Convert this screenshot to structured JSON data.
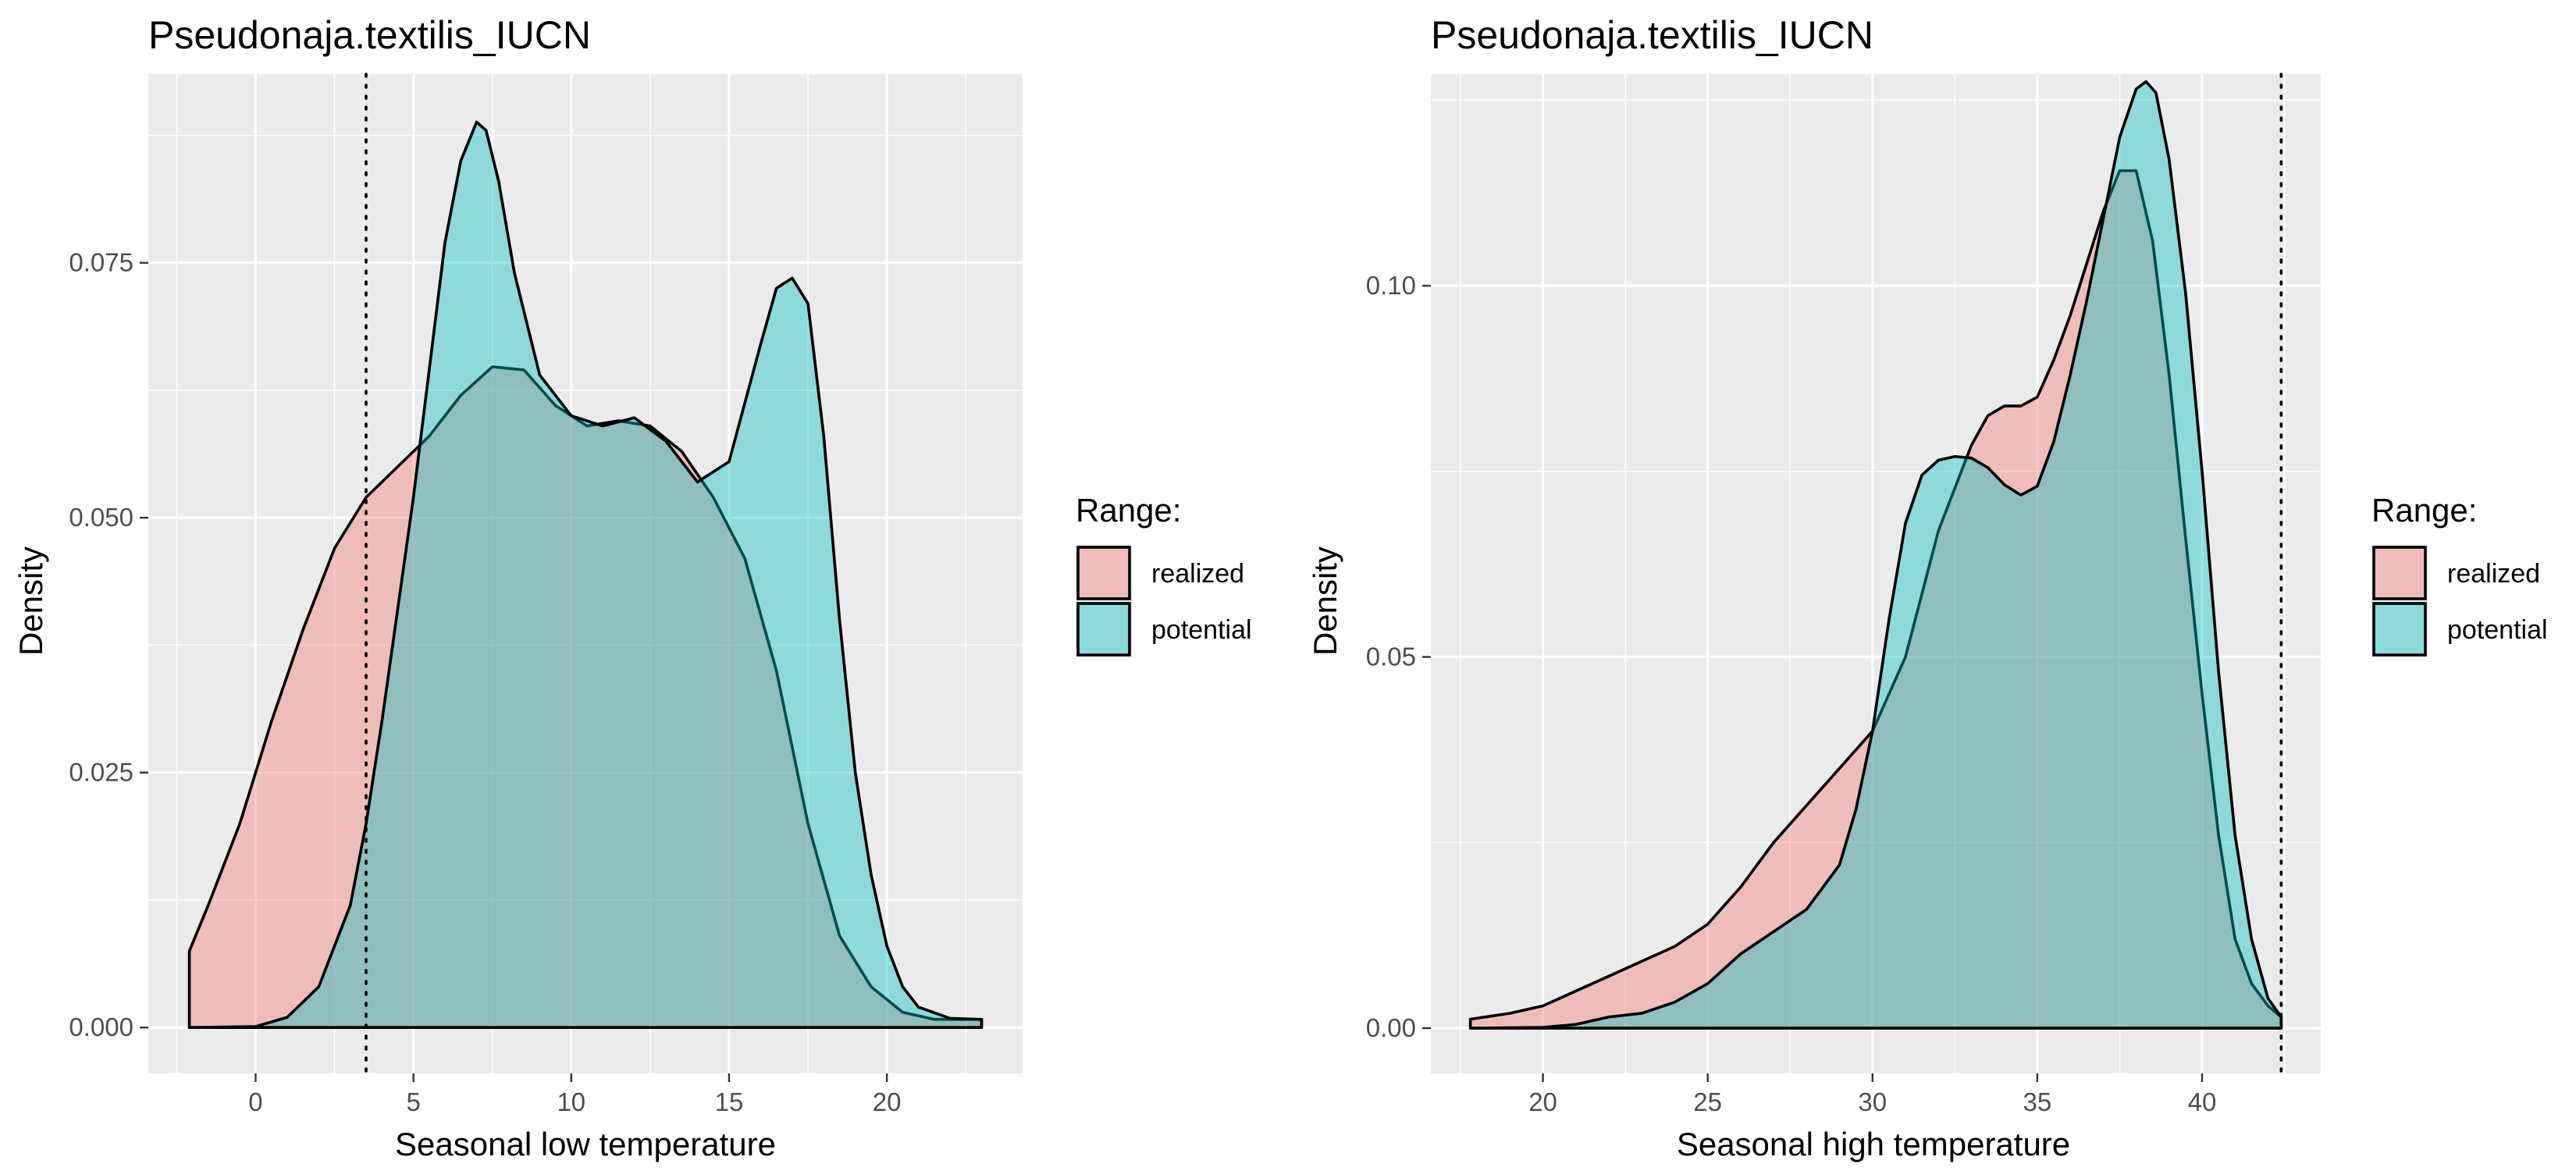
{
  "colors": {
    "realized": "#F8766D",
    "potential": "#00BFC4",
    "fill_opacity": 0.4,
    "panel": "#EBEBEB",
    "grid": "#FFFFFF"
  },
  "chart_data": [
    {
      "type": "area",
      "title": "Pseudonaja.textilis_IUCN",
      "xlabel": "Seasonal low temperature",
      "ylabel": "Density",
      "xlim": [
        -3.4,
        24.3
      ],
      "ylim": [
        -0.0045,
        0.0935
      ],
      "x_ticks": [
        0,
        5,
        10,
        15,
        20
      ],
      "x_tick_labels": [
        "0",
        "5",
        "10",
        "15",
        "20"
      ],
      "y_ticks": [
        0,
        0.025,
        0.05,
        0.075
      ],
      "y_tick_labels": [
        "0.000",
        "0.025",
        "0.050",
        "0.075"
      ],
      "grid": true,
      "legend": {
        "title": "Range:",
        "position": "right",
        "entries": [
          "realized",
          "potential"
        ]
      },
      "vline": 3.5,
      "series": [
        {
          "name": "realized",
          "x": [
            -2.1,
            -1.5,
            -0.5,
            0.5,
            1.5,
            2.5,
            3.5,
            4.5,
            5.5,
            6.5,
            7.5,
            8.5,
            9.5,
            10.5,
            11.5,
            12.5,
            13.5,
            14.5,
            15.5,
            16.5,
            17.5,
            18.5,
            19.5,
            20.5,
            21.5,
            23.0
          ],
          "y": [
            0.0075,
            0.012,
            0.02,
            0.03,
            0.039,
            0.047,
            0.052,
            0.055,
            0.058,
            0.062,
            0.0648,
            0.0645,
            0.061,
            0.059,
            0.0595,
            0.059,
            0.0565,
            0.052,
            0.046,
            0.035,
            0.02,
            0.009,
            0.004,
            0.0015,
            0.0008,
            0.0008
          ]
        },
        {
          "name": "potential",
          "x": [
            -2.1,
            0,
            1.0,
            2.0,
            3.0,
            3.5,
            4.0,
            5.0,
            6.0,
            6.5,
            7.0,
            7.3,
            7.7,
            8.2,
            9.0,
            10.0,
            11.0,
            12.0,
            13.0,
            14.0,
            15.0,
            16.0,
            16.5,
            17.0,
            17.5,
            18.0,
            18.5,
            19.0,
            19.5,
            20.0,
            20.5,
            21.0,
            22.0,
            23.0
          ],
          "y": [
            0.0,
            0.0001,
            0.001,
            0.004,
            0.012,
            0.02,
            0.03,
            0.052,
            0.077,
            0.085,
            0.0888,
            0.088,
            0.083,
            0.074,
            0.064,
            0.06,
            0.059,
            0.0598,
            0.0575,
            0.0535,
            0.0555,
            0.067,
            0.0725,
            0.0735,
            0.071,
            0.058,
            0.04,
            0.025,
            0.015,
            0.008,
            0.004,
            0.002,
            0.0009,
            0.0008
          ]
        }
      ]
    },
    {
      "type": "area",
      "title": "Pseudonaja.textilis_IUCN",
      "xlabel": "Seasonal high temperature",
      "ylabel": "Density",
      "xlim": [
        16.6,
        43.6
      ],
      "ylim": [
        -0.0061,
        0.1285
      ],
      "x_ticks": [
        20,
        25,
        30,
        35,
        40
      ],
      "x_tick_labels": [
        "20",
        "25",
        "30",
        "35",
        "40"
      ],
      "y_ticks": [
        0,
        0.05,
        0.1
      ],
      "y_tick_labels": [
        "0.00",
        "0.05",
        "0.10"
      ],
      "grid": true,
      "legend": {
        "title": "Range:",
        "position": "right",
        "entries": [
          "realized",
          "potential"
        ]
      },
      "vline": 42.4,
      "series": [
        {
          "name": "realized",
          "x": [
            17.8,
            19.0,
            20.0,
            21.0,
            22.0,
            23.0,
            24.0,
            25.0,
            26.0,
            27.0,
            28.0,
            29.0,
            30.0,
            31.0,
            32.0,
            33.0,
            33.5,
            34.0,
            34.5,
            35.0,
            35.5,
            36.0,
            36.5,
            37.0,
            37.5,
            38.0,
            38.5,
            39.0,
            39.5,
            40.0,
            40.5,
            41.0,
            41.5,
            42.0,
            42.4
          ],
          "y": [
            0.0012,
            0.002,
            0.003,
            0.005,
            0.007,
            0.009,
            0.011,
            0.014,
            0.019,
            0.025,
            0.03,
            0.035,
            0.04,
            0.05,
            0.067,
            0.0785,
            0.0825,
            0.0838,
            0.0838,
            0.085,
            0.09,
            0.096,
            0.103,
            0.11,
            0.1155,
            0.1155,
            0.106,
            0.088,
            0.066,
            0.045,
            0.026,
            0.012,
            0.006,
            0.003,
            0.0015
          ]
        },
        {
          "name": "potential",
          "x": [
            17.8,
            20.0,
            21.0,
            22.0,
            23.0,
            24.0,
            25.0,
            26.0,
            27.0,
            28.0,
            29.0,
            29.5,
            30.0,
            30.5,
            31.0,
            31.5,
            32.0,
            32.5,
            33.0,
            33.5,
            34.0,
            34.5,
            35.0,
            35.5,
            36.0,
            36.5,
            37.0,
            37.5,
            38.0,
            38.3,
            38.6,
            39.0,
            39.5,
            40.0,
            40.5,
            41.0,
            41.5,
            42.0,
            42.4
          ],
          "y": [
            0.0,
            0.0001,
            0.0005,
            0.0015,
            0.002,
            0.0035,
            0.006,
            0.01,
            0.013,
            0.016,
            0.022,
            0.0295,
            0.04,
            0.055,
            0.068,
            0.0745,
            0.0765,
            0.077,
            0.0768,
            0.0755,
            0.0732,
            0.0718,
            0.073,
            0.079,
            0.088,
            0.098,
            0.109,
            0.12,
            0.1265,
            0.1275,
            0.126,
            0.117,
            0.099,
            0.075,
            0.048,
            0.026,
            0.012,
            0.004,
            0.0015
          ]
        }
      ]
    }
  ]
}
